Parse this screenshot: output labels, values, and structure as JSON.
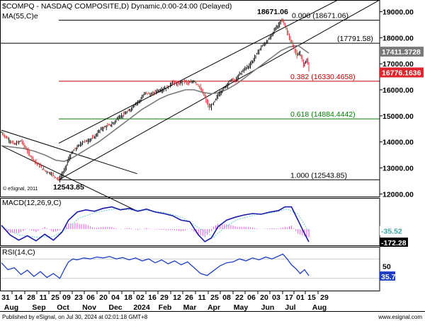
{
  "chart_data": [
    {
      "type": "candlestick",
      "title": "$COMPQ - NASDAQ COMPOSITE,D) Dynamic,0:00-24:00 (Delayed)",
      "indicator_label": "MA(55,C)e",
      "watermark": "© eSignal, 2011",
      "ylim": [
        11900,
        19450
      ],
      "y_ticks": [
        12000,
        13000,
        14000,
        15000,
        16000,
        17000,
        18000,
        19000
      ],
      "y_tick_labels": [
        "12000.00",
        "13000.00",
        "14000.00",
        "15000.00",
        "16000.00",
        "17000.00",
        "18000.00",
        "19000.00"
      ],
      "price_path": [
        [
          0,
          14350
        ],
        [
          6,
          14100
        ],
        [
          12,
          13900
        ],
        [
          18,
          14050
        ],
        [
          26,
          13500
        ],
        [
          32,
          13200
        ],
        [
          40,
          12900
        ],
        [
          47,
          12750
        ],
        [
          53,
          12543.85
        ],
        [
          58,
          12900
        ],
        [
          62,
          13350
        ],
        [
          66,
          13650
        ],
        [
          70,
          13800
        ],
        [
          75,
          14000
        ],
        [
          80,
          14050
        ],
        [
          86,
          14200
        ],
        [
          92,
          14500
        ],
        [
          97,
          14600
        ],
        [
          103,
          14700
        ],
        [
          108,
          14950
        ],
        [
          113,
          15050
        ],
        [
          118,
          15200
        ],
        [
          123,
          15450
        ],
        [
          128,
          15600
        ],
        [
          133,
          15900
        ],
        [
          138,
          15800
        ],
        [
          143,
          15950
        ],
        [
          148,
          16000
        ],
        [
          153,
          16100
        ],
        [
          158,
          16300
        ],
        [
          163,
          16200
        ],
        [
          168,
          16350
        ],
        [
          173,
          16250
        ],
        [
          178,
          16350
        ],
        [
          183,
          16100
        ],
        [
          188,
          15700
        ],
        [
          192,
          15300
        ],
        [
          196,
          15500
        ],
        [
          200,
          15800
        ],
        [
          204,
          16000
        ],
        [
          208,
          16200
        ],
        [
          212,
          16400
        ],
        [
          216,
          16350
        ],
        [
          220,
          16600
        ],
        [
          224,
          16800
        ],
        [
          228,
          16900
        ],
        [
          232,
          17100
        ],
        [
          236,
          17400
        ],
        [
          240,
          17650
        ],
        [
          244,
          17800
        ],
        [
          248,
          18000
        ],
        [
          252,
          18300
        ],
        [
          256,
          18500
        ],
        [
          258,
          18671.06
        ],
        [
          261,
          18550
        ],
        [
          264,
          18200
        ],
        [
          267,
          17900
        ],
        [
          270,
          17600
        ],
        [
          273,
          17300
        ],
        [
          276,
          17400
        ],
        [
          279,
          16950
        ],
        [
          282,
          17200
        ],
        [
          284,
          16776.16
        ]
      ],
      "ma_path": [
        [
          0,
          13850
        ],
        [
          10,
          13800
        ],
        [
          20,
          13750
        ],
        [
          30,
          13650
        ],
        [
          40,
          13500
        ],
        [
          50,
          13300
        ],
        [
          58,
          13250
        ],
        [
          66,
          13400
        ],
        [
          74,
          13600
        ],
        [
          82,
          13800
        ],
        [
          90,
          14000
        ],
        [
          98,
          14250
        ],
        [
          106,
          14500
        ],
        [
          114,
          14750
        ],
        [
          122,
          15000
        ],
        [
          130,
          15250
        ],
        [
          138,
          15450
        ],
        [
          146,
          15650
        ],
        [
          154,
          15800
        ],
        [
          162,
          15900
        ],
        [
          170,
          16000
        ],
        [
          178,
          16000
        ],
        [
          186,
          15900
        ],
        [
          194,
          15850
        ],
        [
          202,
          15900
        ],
        [
          210,
          16050
        ],
        [
          218,
          16250
        ],
        [
          226,
          16500
        ],
        [
          234,
          16750
        ],
        [
          242,
          17000
        ],
        [
          250,
          17250
        ],
        [
          258,
          17500
        ],
        [
          266,
          17650
        ],
        [
          274,
          17700
        ],
        [
          284,
          17411.37
        ]
      ],
      "channel_lines": [
        {
          "label": "upper channel",
          "p1": [
            53,
            13950
          ],
          "p2": [
            285,
            18900
          ]
        },
        {
          "label": "lower channel",
          "p1": [
            53,
            12543.85
          ],
          "p2": [
            285,
            17950
          ]
        },
        {
          "label": "prior downtrend upper",
          "p1": [
            0,
            14450
          ],
          "p2": [
            60,
            13650
          ]
        },
        {
          "label": "prior downtrend lower",
          "p1": [
            0,
            13850
          ],
          "p2": [
            60,
            12650
          ]
        }
      ],
      "fib_levels": [
        {
          "ratio": "0.000",
          "value": 18671.06,
          "label": "0.000 (18671.06)",
          "color": "#000000"
        },
        {
          "ratio": "0.382",
          "value": 16330.4658,
          "label": "0.382 (16330.4658)",
          "color": "#c00000"
        },
        {
          "ratio": "0.618",
          "value": 14884.4442,
          "label": "0.618 (14884.4442)",
          "color": "#008000"
        },
        {
          "ratio": "1.000",
          "value": 12543.85,
          "label": "1.000 (12543.85)",
          "color": "#000000"
        }
      ],
      "resistance_level": {
        "value": 17791.58,
        "label": "(17791.58)"
      },
      "annotations": [
        {
          "text": "18671.06",
          "value": 18671.06
        },
        {
          "text": "12543.85",
          "value": 12543.85
        }
      ],
      "last_value_badges": [
        {
          "text": "17411.3728",
          "value": 17411.3728,
          "color": "#7a7a7a"
        },
        {
          "text": "16776.1636",
          "value": 16776.1636,
          "color": "#e0242b"
        }
      ]
    },
    {
      "type": "line",
      "title": "MACD(12,26,9,C)",
      "ylim": [
        -220,
        420
      ],
      "macd_path": [
        [
          0,
          50
        ],
        [
          8,
          -80
        ],
        [
          16,
          -150
        ],
        [
          24,
          -90
        ],
        [
          32,
          -160
        ],
        [
          40,
          -70
        ],
        [
          48,
          -150
        ],
        [
          56,
          -40
        ],
        [
          62,
          120
        ],
        [
          70,
          230
        ],
        [
          78,
          260
        ],
        [
          86,
          240
        ],
        [
          94,
          280
        ],
        [
          102,
          300
        ],
        [
          110,
          260
        ],
        [
          118,
          280
        ],
        [
          126,
          240
        ],
        [
          134,
          270
        ],
        [
          142,
          230
        ],
        [
          150,
          210
        ],
        [
          158,
          180
        ],
        [
          166,
          120
        ],
        [
          174,
          100
        ],
        [
          182,
          -80
        ],
        [
          188,
          -170
        ],
        [
          194,
          -120
        ],
        [
          200,
          30
        ],
        [
          208,
          120
        ],
        [
          216,
          160
        ],
        [
          224,
          190
        ],
        [
          232,
          210
        ],
        [
          240,
          200
        ],
        [
          248,
          230
        ],
        [
          256,
          250
        ],
        [
          262,
          300
        ],
        [
          268,
          300
        ],
        [
          274,
          120
        ],
        [
          280,
          -60
        ],
        [
          284,
          -172.28
        ]
      ],
      "signal_path": [
        [
          0,
          40
        ],
        [
          16,
          -80
        ],
        [
          32,
          -110
        ],
        [
          48,
          -100
        ],
        [
          60,
          0
        ],
        [
          72,
          150
        ],
        [
          88,
          230
        ],
        [
          104,
          270
        ],
        [
          120,
          260
        ],
        [
          136,
          250
        ],
        [
          152,
          220
        ],
        [
          168,
          150
        ],
        [
          184,
          0
        ],
        [
          196,
          -110
        ],
        [
          206,
          20
        ],
        [
          218,
          130
        ],
        [
          234,
          190
        ],
        [
          250,
          220
        ],
        [
          264,
          270
        ],
        [
          274,
          200
        ],
        [
          284,
          -35.52
        ]
      ],
      "last_value_badges": [
        {
          "text": "-35.52",
          "value": -35.52,
          "color": "#3aa8a8"
        },
        {
          "text": "-172.28",
          "value": -172.28,
          "color": "#000000"
        }
      ]
    },
    {
      "type": "line",
      "title": "RSI(14,C)",
      "ylim": [
        5,
        95
      ],
      "y_ticks": [
        50
      ],
      "y_tick_labels": [
        "50"
      ],
      "reference_levels": [
        70,
        30
      ],
      "rsi_path": [
        [
          0,
          62
        ],
        [
          6,
          48
        ],
        [
          12,
          52
        ],
        [
          18,
          38
        ],
        [
          24,
          47
        ],
        [
          30,
          34
        ],
        [
          36,
          44
        ],
        [
          42,
          32
        ],
        [
          48,
          40
        ],
        [
          54,
          30
        ],
        [
          58,
          48
        ],
        [
          62,
          64
        ],
        [
          66,
          70
        ],
        [
          70,
          68
        ],
        [
          76,
          72
        ],
        [
          82,
          70
        ],
        [
          88,
          74
        ],
        [
          94,
          72
        ],
        [
          100,
          75
        ],
        [
          106,
          70
        ],
        [
          112,
          73
        ],
        [
          118,
          68
        ],
        [
          124,
          72
        ],
        [
          130,
          66
        ],
        [
          136,
          70
        ],
        [
          142,
          62
        ],
        [
          148,
          68
        ],
        [
          154,
          60
        ],
        [
          160,
          66
        ],
        [
          166,
          58
        ],
        [
          172,
          64
        ],
        [
          178,
          52
        ],
        [
          184,
          40
        ],
        [
          190,
          36
        ],
        [
          196,
          46
        ],
        [
          202,
          56
        ],
        [
          208,
          62
        ],
        [
          214,
          64
        ],
        [
          220,
          70
        ],
        [
          226,
          66
        ],
        [
          232,
          72
        ],
        [
          238,
          68
        ],
        [
          244,
          74
        ],
        [
          250,
          70
        ],
        [
          256,
          76
        ],
        [
          260,
          80
        ],
        [
          264,
          70
        ],
        [
          268,
          58
        ],
        [
          272,
          50
        ],
        [
          276,
          40
        ],
        [
          280,
          48
        ],
        [
          284,
          35.7
        ]
      ],
      "last_value_badges": [
        {
          "text": "35.7",
          "value": 35.7,
          "color": "#1f3fc4"
        }
      ]
    }
  ],
  "x_axis": {
    "day_labels": [
      "31",
      "14",
      "28",
      "11",
      "25",
      "09",
      "23",
      "06",
      "20",
      "04",
      "18",
      "02",
      "16",
      "29",
      "12",
      "26",
      "11",
      "25",
      "08",
      "22",
      "06",
      "20",
      "03",
      "17",
      "01",
      "15",
      "29"
    ],
    "month_labels": [
      "Aug",
      "Sep",
      "Oct",
      "Nov",
      "Dec",
      "2024",
      "Feb",
      "Mar",
      "Apr",
      "May",
      "Jun",
      "Jul",
      "Aug"
    ]
  },
  "footer": {
    "text": "Published by eSignal, on     Jul 30, 2024 at 02:01:18 GMT+8",
    "link": "www.esignal.com"
  },
  "colors": {
    "price_up": "#000000",
    "price_down": "#e0242b",
    "ma": "#7a7a7a",
    "channel": "#000000",
    "macd_line": "#1a1aa8",
    "macd_signal": "#7fd4d4",
    "macd_histogram": "#e85ae8",
    "rsi": "#1f3fc4"
  }
}
